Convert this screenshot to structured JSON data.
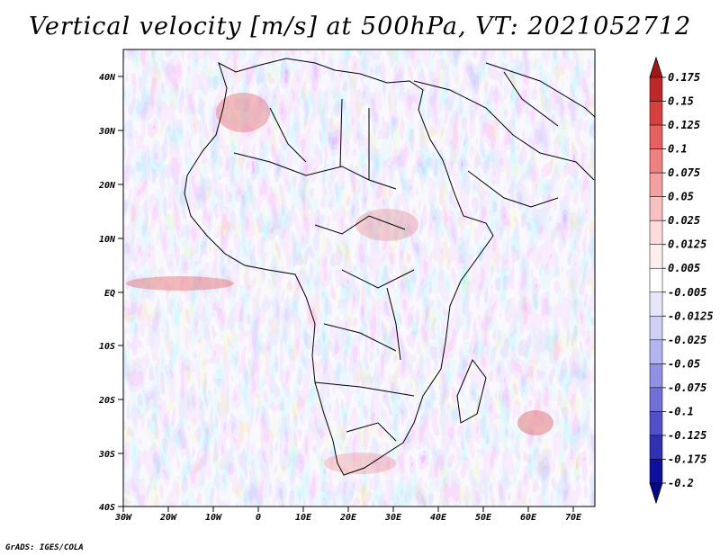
{
  "title": "Vertical velocity [m/s] at 500hPa, VT: 2021052712",
  "footer": "GrADS: IGES/COLA",
  "map": {
    "lat_labels": [
      "40N",
      "30N",
      "20N",
      "10N",
      "EQ",
      "10S",
      "20S",
      "30S",
      "40S"
    ],
    "lon_labels": [
      "30W",
      "20W",
      "10W",
      "0",
      "10E",
      "20E",
      "30E",
      "40E",
      "50E",
      "60E",
      "70E"
    ]
  },
  "colorbar": {
    "labels": [
      "0.175",
      "0.15",
      "0.125",
      "0.1",
      "0.075",
      "0.05",
      "0.025",
      "0.0125",
      "0.005",
      "-0.005",
      "-0.0125",
      "-0.025",
      "-0.05",
      "-0.075",
      "-0.1",
      "-0.125",
      "-0.175",
      "-0.2"
    ],
    "colors": [
      "#a01818",
      "#c02828",
      "#d84040",
      "#e66060",
      "#ef8080",
      "#f5a0a0",
      "#f9c0c0",
      "#fcdcdc",
      "#fdeeee",
      "#ffffff",
      "#e6e6fb",
      "#d0d0f5",
      "#b4b4ee",
      "#9090e4",
      "#7070d8",
      "#5050c8",
      "#3030b4",
      "#1010a0",
      "#08088a"
    ]
  }
}
